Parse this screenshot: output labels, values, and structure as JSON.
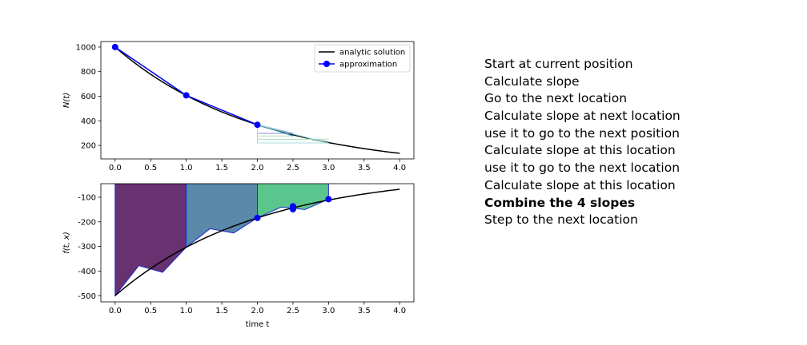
{
  "chart_data": [
    {
      "type": "line",
      "ylabel": "N(t)",
      "xlim": [
        -0.2,
        4.2
      ],
      "ylim": [
        90,
        1045
      ],
      "xticks": [
        "0.0",
        "0.5",
        "1.0",
        "1.5",
        "2.0",
        "2.5",
        "3.0",
        "3.5",
        "4.0"
      ],
      "yticks": [
        "200",
        "400",
        "600",
        "800",
        "1000"
      ],
      "legend": {
        "position": "top-right",
        "entries": [
          "analytic solution",
          "approximation"
        ]
      },
      "analytic": {
        "name": "analytic solution",
        "N0": 1000,
        "rate": 0.5,
        "x_range": [
          0,
          4
        ],
        "color": "#000000"
      },
      "approximation": {
        "name": "approximation",
        "color": "#0000ff",
        "x": [
          0,
          1,
          2
        ],
        "y": [
          1000,
          607,
          368
        ]
      },
      "step_lines": [
        {
          "x": [
            2.0,
            2.5
          ],
          "y": [
            368,
            298
          ],
          "color": "#8a8fd8"
        },
        {
          "x": [
            2.0,
            2.5
          ],
          "y": [
            368,
            277
          ],
          "color": "#4a98b8"
        },
        {
          "x": [
            2.0,
            3.0
          ],
          "y": [
            368,
            218
          ],
          "color": "#8ad0d0"
        }
      ],
      "hlines": [
        {
          "x": [
            2.0,
            2.5
          ],
          "y": 298,
          "color": "#8a8fd8"
        },
        {
          "x": [
            2.0,
            2.5
          ],
          "y": 277,
          "color": "#b8e0b8"
        },
        {
          "x": [
            2.0,
            3.0
          ],
          "y": 250,
          "color": "#a8e0b8"
        },
        {
          "x": [
            2.0,
            3.0
          ],
          "y": 220,
          "color": "#a8dcdc"
        }
      ]
    },
    {
      "type": "area",
      "ylabel": "f(t, x)",
      "xlabel": "time t",
      "xlim": [
        -0.2,
        4.2
      ],
      "ylim": [
        -525,
        -45
      ],
      "xticks": [
        "0.0",
        "0.5",
        "1.0",
        "1.5",
        "2.0",
        "2.5",
        "3.0",
        "3.5",
        "4.0"
      ],
      "yticks": [
        "-500",
        "-400",
        "-300",
        "-200",
        "-100"
      ],
      "analytic": {
        "fprime0": -500,
        "rate": 0.5,
        "x_range": [
          0,
          4
        ],
        "color": "#000000"
      },
      "fills": [
        {
          "x": [
            0,
            0.333,
            0.667,
            1.0
          ],
          "y": [
            -500,
            -378,
            -405,
            -303
          ],
          "color": "#68316f"
        },
        {
          "x": [
            1.0,
            1.333,
            1.667,
            2.0
          ],
          "y": [
            -303,
            -228,
            -245,
            -184
          ],
          "color": "#5a89a9"
        },
        {
          "x": [
            2.0,
            2.333,
            2.667,
            3.0
          ],
          "y": [
            -184,
            -140,
            -150,
            -108
          ],
          "color": "#5ac68e"
        }
      ],
      "points": {
        "color": "#0000ff",
        "x": [
          2.0,
          2.5,
          2.5,
          3.0
        ],
        "y": [
          -184,
          -137,
          -149,
          -108
        ]
      }
    }
  ],
  "steps": [
    {
      "text": "Start at current position",
      "bold": false
    },
    {
      "text": "Calculate slope",
      "bold": false
    },
    {
      "text": "Go to the next location",
      "bold": false
    },
    {
      "text": "Calculate slope at next location",
      "bold": false
    },
    {
      "text": "use it to go to the next position",
      "bold": false
    },
    {
      "text": "Calculate slope at this location",
      "bold": false
    },
    {
      "text": "use it to go to the next location",
      "bold": false
    },
    {
      "text": "Calculate slope at this location",
      "bold": false
    },
    {
      "text": "Combine the 4 slopes",
      "bold": true
    },
    {
      "text": "Step to the next location",
      "bold": false
    }
  ]
}
